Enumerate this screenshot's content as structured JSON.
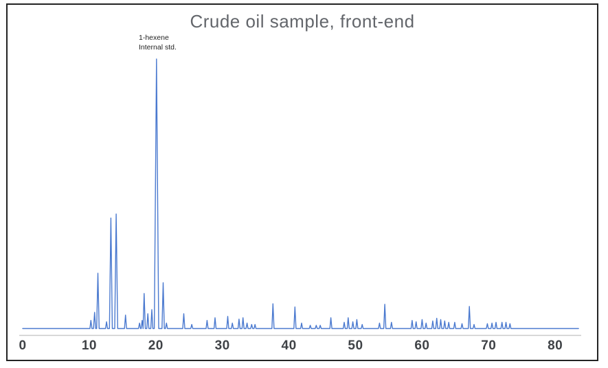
{
  "window": {
    "frame_border_color": "#222222",
    "background_color": "#ffffff"
  },
  "chart_data": {
    "type": "line",
    "subtype": "chromatogram",
    "title": "Crude oil sample, front-end",
    "annotation": {
      "line1": "1-hexene",
      "line2": "Internal std.",
      "target_peak_x": 20.1
    },
    "xlabel": "",
    "ylabel": "",
    "x_ticks": [
      0,
      10,
      20,
      30,
      40,
      50,
      60,
      70,
      80
    ],
    "xlim": [
      0,
      83.5
    ],
    "ylim": [
      0,
      105
    ],
    "grid": "off",
    "legend": "none",
    "y_axis_labels_visible": false,
    "line_color": "#4a79cf",
    "axis_line_color": "#c9c9c9",
    "title_color": "#63666b",
    "tick_label_color": "#3f4246",
    "annotation_color": "#1f1f1f",
    "peaks_note": "each peak is [retention_x, height_percent_of_tallest]",
    "peaks": [
      [
        10.25,
        3
      ],
      [
        10.8,
        6
      ],
      [
        11.3,
        20.5
      ],
      [
        12.6,
        2.5
      ],
      [
        13.25,
        41
      ],
      [
        14.05,
        42.5
      ],
      [
        15.45,
        5
      ],
      [
        17.55,
        2
      ],
      [
        17.95,
        3
      ],
      [
        18.25,
        13
      ],
      [
        18.8,
        5.5
      ],
      [
        19.4,
        7
      ],
      [
        20.1,
        100
      ],
      [
        21.1,
        17
      ],
      [
        21.6,
        2
      ],
      [
        24.2,
        5.5
      ],
      [
        25.4,
        1.5
      ],
      [
        27.7,
        3
      ],
      [
        28.9,
        4
      ],
      [
        30.8,
        4.5
      ],
      [
        31.5,
        2
      ],
      [
        32.5,
        3.5
      ],
      [
        33.1,
        4
      ],
      [
        33.7,
        2
      ],
      [
        34.4,
        1.5
      ],
      [
        34.9,
        1.5
      ],
      [
        37.6,
        9.2
      ],
      [
        40.9,
        8
      ],
      [
        41.9,
        2
      ],
      [
        43.2,
        1.2
      ],
      [
        44.1,
        1.2
      ],
      [
        44.7,
        1.2
      ],
      [
        46.3,
        4
      ],
      [
        48.3,
        2.3
      ],
      [
        48.9,
        4
      ],
      [
        49.6,
        2.5
      ],
      [
        50.2,
        3.3
      ],
      [
        51.0,
        1.5
      ],
      [
        53.6,
        2
      ],
      [
        54.4,
        9
      ],
      [
        55.4,
        2.3
      ],
      [
        58.5,
        3
      ],
      [
        59.1,
        2.5
      ],
      [
        60.0,
        3.3
      ],
      [
        60.6,
        2
      ],
      [
        61.6,
        2.8
      ],
      [
        62.2,
        3.8
      ],
      [
        62.8,
        3.3
      ],
      [
        63.4,
        2.8
      ],
      [
        64.0,
        2.3
      ],
      [
        64.9,
        2.3
      ],
      [
        66.0,
        1.8
      ],
      [
        67.1,
        8.2
      ],
      [
        67.8,
        1.5
      ],
      [
        69.8,
        1.8
      ],
      [
        70.5,
        2
      ],
      [
        71.1,
        2.3
      ],
      [
        72.0,
        2.3
      ],
      [
        72.6,
        2.3
      ],
      [
        73.2,
        1.8
      ]
    ]
  }
}
